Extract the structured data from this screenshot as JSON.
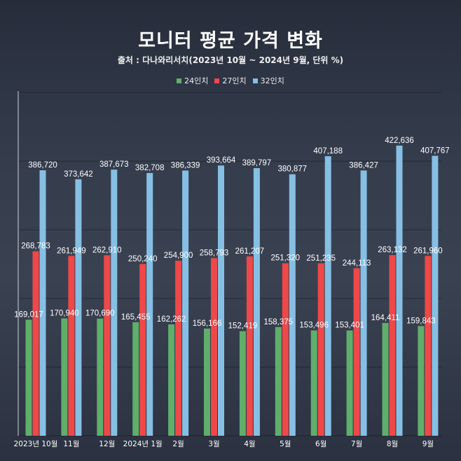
{
  "chart_data": {
    "type": "bar",
    "title": "모니터 평균 가격 변화",
    "subtitle": "출처 : 다나와리서치(2023년 10월 ~ 2024년 9월, 단위 %)",
    "xlabel": "",
    "ylabel": "",
    "ylim": [
      0,
      500000
    ],
    "grid": true,
    "legend_position": "top-center",
    "categories": [
      "2023년 10월",
      "11월",
      "12월",
      "2024년 1월",
      "2월",
      "3월",
      "4월",
      "5월",
      "6월",
      "7월",
      "8월",
      "9월"
    ],
    "series": [
      {
        "name": "24인치",
        "color": "#5fae6b",
        "values": [
          169017,
          170940,
          170690,
          165455,
          162262,
          156166,
          152419,
          158375,
          153496,
          153401,
          164411,
          159843
        ],
        "labels": [
          "169,017",
          "170,940",
          "170,690",
          "165,455",
          "162,262",
          "156,166",
          "152,419",
          "158,375",
          "153,496",
          "153,401",
          "164,411",
          "159,843"
        ]
      },
      {
        "name": "27인치",
        "color": "#ee4848",
        "values": [
          268783,
          261949,
          262910,
          250240,
          254900,
          258793,
          261207,
          251320,
          251235,
          244113,
          263132,
          261960
        ],
        "labels": [
          "268,783",
          "261,949",
          "262,910",
          "250,240",
          "254,900",
          "258,793",
          "261,207",
          "251,320",
          "251,235",
          "244,113",
          "263,132",
          "261,960"
        ]
      },
      {
        "name": "32인치",
        "color": "#86bfe3",
        "values": [
          386720,
          373642,
          387673,
          382708,
          386339,
          393664,
          389797,
          380877,
          407188,
          386427,
          422636,
          407767
        ],
        "labels": [
          "386,720",
          "373,642",
          "387,673",
          "382,708",
          "386,339",
          "393,664",
          "389,797",
          "380,877",
          "407,188",
          "386,427",
          "422,636",
          "407,767"
        ]
      }
    ]
  }
}
